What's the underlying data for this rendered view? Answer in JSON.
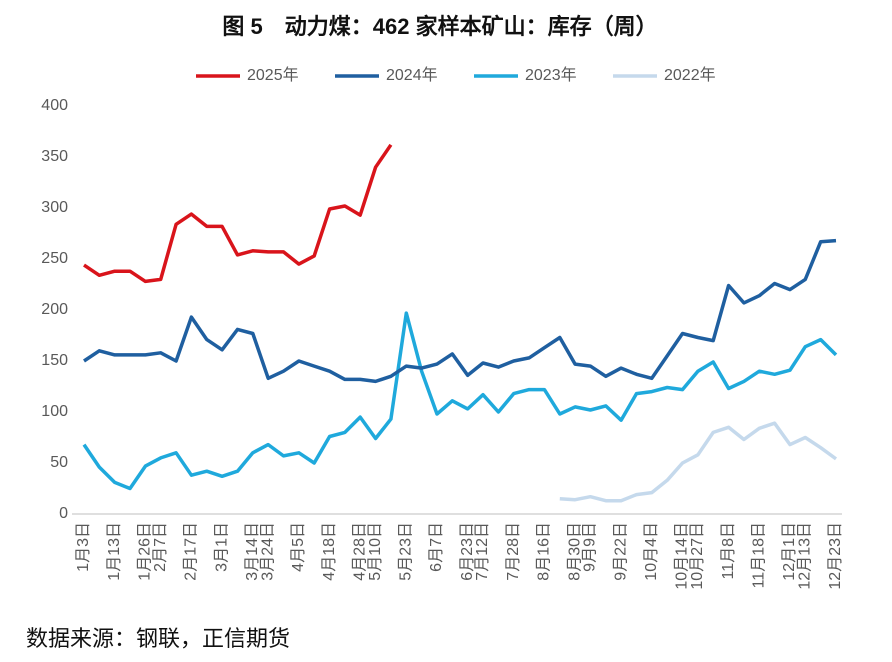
{
  "chart_data": {
    "type": "line",
    "title": "图 5　动力煤：462 家样本矿山：库存（周）",
    "source": "数据来源：钢联，正信期货",
    "categories": [
      "1月3日",
      null,
      "1月13日",
      null,
      "1月26日",
      "2月7日",
      null,
      "2月17日",
      null,
      "3月1日",
      null,
      "3月14日",
      "3月24日",
      null,
      "4月5日",
      null,
      "4月18日",
      null,
      "4月28日",
      "5月10日",
      null,
      "5月23日",
      null,
      "6月7日",
      null,
      "6月23日",
      "7月12日",
      null,
      "7月28日",
      null,
      "8月16日",
      null,
      "8月30日",
      "9月9日",
      null,
      "9月22日",
      null,
      "10月4日",
      null,
      "10月14日",
      "10月27日",
      null,
      "11月8日",
      null,
      "11月18日",
      null,
      "12月1日",
      "12月13日",
      null,
      "12月23日"
    ],
    "series": [
      {
        "name": "2025年",
        "color": "#d9141b",
        "values": [
          244,
          234,
          238,
          238,
          228,
          230,
          284,
          294,
          282,
          282,
          254,
          258,
          257,
          257,
          245,
          253,
          299,
          302,
          293,
          340,
          362,
          null,
          null,
          null,
          null,
          null,
          null,
          null,
          null,
          null,
          null,
          null,
          null,
          null,
          null,
          null,
          null,
          null,
          null,
          null,
          null,
          null,
          null,
          null,
          null,
          null,
          null,
          null,
          null,
          null
        ]
      },
      {
        "name": "2024年",
        "color": "#1f5fa0",
        "values": [
          150,
          160,
          156,
          156,
          156,
          158,
          150,
          193,
          171,
          161,
          181,
          177,
          133,
          140,
          150,
          145,
          140,
          132,
          132,
          130,
          135,
          145,
          143,
          147,
          157,
          136,
          148,
          144,
          150,
          153,
          163,
          173,
          147,
          145,
          135,
          143,
          137,
          133,
          155,
          177,
          173,
          170,
          224,
          207,
          214,
          226,
          220,
          230,
          267,
          268
        ]
      },
      {
        "name": "2023年",
        "color": "#1fa9dc",
        "values": [
          68,
          46,
          31,
          25,
          47,
          55,
          60,
          38,
          42,
          37,
          42,
          60,
          68,
          57,
          60,
          50,
          76,
          80,
          95,
          74,
          93,
          197,
          140,
          98,
          111,
          103,
          117,
          100,
          118,
          122,
          122,
          98,
          105,
          102,
          106,
          92,
          118,
          120,
          124,
          122,
          140,
          149,
          123,
          130,
          140,
          137,
          141,
          164,
          171,
          156
        ]
      },
      {
        "name": "2022年",
        "color": "#c5d9ec",
        "values": [
          null,
          null,
          null,
          null,
          null,
          null,
          null,
          null,
          null,
          null,
          null,
          null,
          null,
          null,
          null,
          null,
          null,
          null,
          null,
          null,
          null,
          null,
          null,
          null,
          null,
          null,
          null,
          null,
          null,
          null,
          null,
          15,
          14,
          17,
          13,
          13,
          19,
          21,
          33,
          50,
          58,
          80,
          85,
          73,
          84,
          89,
          68,
          75,
          65,
          54
        ]
      }
    ],
    "ylim": [
      0,
      400
    ],
    "yticks": [
      0,
      50,
      100,
      150,
      200,
      250,
      300,
      350,
      400
    ],
    "grid": false,
    "legend": "top"
  }
}
